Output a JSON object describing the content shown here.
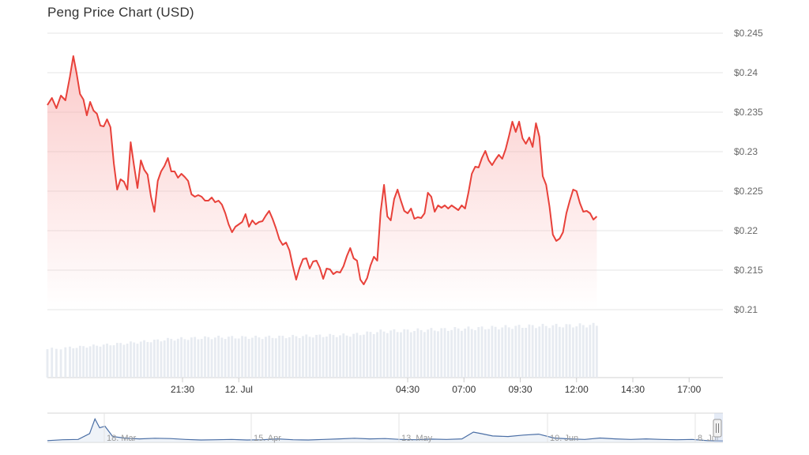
{
  "title": "Peng Price Chart (USD)",
  "chart_data": {
    "type": "area",
    "title": "Peng Price Chart (USD)",
    "y_unit": "USD",
    "ylim": [
      0.21,
      0.245
    ],
    "y_ticks": [
      "$0.245",
      "$0.24",
      "$0.235",
      "$0.23",
      "$0.225",
      "$0.22",
      "$0.215",
      "$0.21"
    ],
    "y_tick_values": [
      0.245,
      0.24,
      0.235,
      0.23,
      0.225,
      0.22,
      0.215,
      0.21
    ],
    "x_ticks": [
      "21:30",
      "12. Jul",
      "04:30",
      "07:00",
      "09:30",
      "12:00",
      "14:30",
      "17:00"
    ],
    "x_tick_hours": [
      2.5,
      5,
      12.5,
      15,
      17.5,
      20,
      22.5,
      25
    ],
    "x_hours_range": [
      -3.5,
      26.5
    ],
    "price": [
      [
        -3.5,
        0.2359
      ],
      [
        -3.3,
        0.2368
      ],
      [
        -3.1,
        0.2355
      ],
      [
        -2.9,
        0.2371
      ],
      [
        -2.7,
        0.2365
      ],
      [
        -2.5,
        0.2395
      ],
      [
        -2.35,
        0.2421
      ],
      [
        -2.2,
        0.2399
      ],
      [
        -2.05,
        0.2373
      ],
      [
        -1.9,
        0.2366
      ],
      [
        -1.75,
        0.2346
      ],
      [
        -1.6,
        0.2363
      ],
      [
        -1.45,
        0.2352
      ],
      [
        -1.3,
        0.2348
      ],
      [
        -1.15,
        0.2333
      ],
      [
        -1.0,
        0.2332
      ],
      [
        -0.85,
        0.2341
      ],
      [
        -0.7,
        0.2331
      ],
      [
        -0.55,
        0.2285
      ],
      [
        -0.4,
        0.2252
      ],
      [
        -0.25,
        0.2265
      ],
      [
        -0.1,
        0.2262
      ],
      [
        0.05,
        0.2252
      ],
      [
        0.2,
        0.2312
      ],
      [
        0.35,
        0.2282
      ],
      [
        0.5,
        0.2254
      ],
      [
        0.65,
        0.2289
      ],
      [
        0.8,
        0.2277
      ],
      [
        0.95,
        0.2271
      ],
      [
        1.1,
        0.2243
      ],
      [
        1.25,
        0.2224
      ],
      [
        1.4,
        0.2263
      ],
      [
        1.55,
        0.2275
      ],
      [
        1.7,
        0.2282
      ],
      [
        1.85,
        0.2292
      ],
      [
        2.0,
        0.2275
      ],
      [
        2.15,
        0.2275
      ],
      [
        2.3,
        0.2267
      ],
      [
        2.45,
        0.2272
      ],
      [
        2.6,
        0.2268
      ],
      [
        2.75,
        0.2263
      ],
      [
        2.9,
        0.2246
      ],
      [
        3.05,
        0.2243
      ],
      [
        3.2,
        0.2245
      ],
      [
        3.35,
        0.2243
      ],
      [
        3.5,
        0.2238
      ],
      [
        3.65,
        0.2238
      ],
      [
        3.8,
        0.2242
      ],
      [
        3.95,
        0.2236
      ],
      [
        4.1,
        0.2238
      ],
      [
        4.25,
        0.2233
      ],
      [
        4.4,
        0.2222
      ],
      [
        4.55,
        0.2208
      ],
      [
        4.7,
        0.2198
      ],
      [
        4.85,
        0.2205
      ],
      [
        5.0,
        0.2208
      ],
      [
        5.15,
        0.2211
      ],
      [
        5.3,
        0.2221
      ],
      [
        5.45,
        0.2205
      ],
      [
        5.6,
        0.2213
      ],
      [
        5.75,
        0.2208
      ],
      [
        5.9,
        0.2211
      ],
      [
        6.05,
        0.2212
      ],
      [
        6.2,
        0.2219
      ],
      [
        6.35,
        0.2225
      ],
      [
        6.5,
        0.2215
      ],
      [
        6.65,
        0.2203
      ],
      [
        6.8,
        0.2189
      ],
      [
        6.95,
        0.2182
      ],
      [
        7.1,
        0.2185
      ],
      [
        7.25,
        0.2175
      ],
      [
        7.4,
        0.2155
      ],
      [
        7.55,
        0.2138
      ],
      [
        7.7,
        0.2153
      ],
      [
        7.85,
        0.2164
      ],
      [
        8.0,
        0.2165
      ],
      [
        8.15,
        0.2152
      ],
      [
        8.3,
        0.2161
      ],
      [
        8.45,
        0.2162
      ],
      [
        8.6,
        0.2153
      ],
      [
        8.75,
        0.2139
      ],
      [
        8.9,
        0.2152
      ],
      [
        9.05,
        0.2151
      ],
      [
        9.2,
        0.2145
      ],
      [
        9.35,
        0.2148
      ],
      [
        9.5,
        0.2147
      ],
      [
        9.65,
        0.2155
      ],
      [
        9.8,
        0.2168
      ],
      [
        9.95,
        0.2178
      ],
      [
        10.1,
        0.2165
      ],
      [
        10.25,
        0.2162
      ],
      [
        10.4,
        0.2138
      ],
      [
        10.55,
        0.2132
      ],
      [
        10.7,
        0.214
      ],
      [
        10.85,
        0.2156
      ],
      [
        11.0,
        0.2167
      ],
      [
        11.15,
        0.2162
      ],
      [
        11.3,
        0.2224
      ],
      [
        11.45,
        0.2258
      ],
      [
        11.6,
        0.2218
      ],
      [
        11.75,
        0.2213
      ],
      [
        11.9,
        0.224
      ],
      [
        12.05,
        0.2252
      ],
      [
        12.2,
        0.2238
      ],
      [
        12.35,
        0.2225
      ],
      [
        12.5,
        0.2222
      ],
      [
        12.65,
        0.2228
      ],
      [
        12.8,
        0.2215
      ],
      [
        12.95,
        0.2217
      ],
      [
        13.1,
        0.2216
      ],
      [
        13.25,
        0.2222
      ],
      [
        13.4,
        0.2248
      ],
      [
        13.55,
        0.2243
      ],
      [
        13.7,
        0.2224
      ],
      [
        13.85,
        0.2232
      ],
      [
        14.0,
        0.2229
      ],
      [
        14.15,
        0.2232
      ],
      [
        14.3,
        0.2228
      ],
      [
        14.45,
        0.2232
      ],
      [
        14.6,
        0.2229
      ],
      [
        14.75,
        0.2226
      ],
      [
        14.9,
        0.2232
      ],
      [
        15.05,
        0.2228
      ],
      [
        15.2,
        0.2248
      ],
      [
        15.35,
        0.2272
      ],
      [
        15.5,
        0.2281
      ],
      [
        15.65,
        0.228
      ],
      [
        15.8,
        0.2292
      ],
      [
        15.95,
        0.2301
      ],
      [
        16.1,
        0.2289
      ],
      [
        16.25,
        0.2283
      ],
      [
        16.4,
        0.229
      ],
      [
        16.55,
        0.2296
      ],
      [
        16.7,
        0.2291
      ],
      [
        16.85,
        0.2303
      ],
      [
        17.0,
        0.232
      ],
      [
        17.15,
        0.2338
      ],
      [
        17.3,
        0.2325
      ],
      [
        17.45,
        0.2338
      ],
      [
        17.6,
        0.2317
      ],
      [
        17.75,
        0.231
      ],
      [
        17.9,
        0.2318
      ],
      [
        18.05,
        0.2306
      ],
      [
        18.2,
        0.2336
      ],
      [
        18.35,
        0.2319
      ],
      [
        18.5,
        0.2269
      ],
      [
        18.65,
        0.2258
      ],
      [
        18.8,
        0.223
      ],
      [
        18.95,
        0.2195
      ],
      [
        19.1,
        0.2187
      ],
      [
        19.25,
        0.219
      ],
      [
        19.4,
        0.2198
      ],
      [
        19.55,
        0.2222
      ],
      [
        19.7,
        0.2238
      ],
      [
        19.85,
        0.2252
      ],
      [
        20.0,
        0.225
      ],
      [
        20.15,
        0.2235
      ],
      [
        20.3,
        0.2224
      ],
      [
        20.45,
        0.2225
      ],
      [
        20.6,
        0.2222
      ],
      [
        20.75,
        0.2214
      ],
      [
        20.9,
        0.2218
      ]
    ],
    "volume_relative": [
      [
        -3.5,
        0.48
      ],
      [
        -2.0,
        0.52
      ],
      [
        0.0,
        0.58
      ],
      [
        2.0,
        0.65
      ],
      [
        4.0,
        0.68
      ],
      [
        6.0,
        0.68
      ],
      [
        8.0,
        0.7
      ],
      [
        10.0,
        0.72
      ],
      [
        11.3,
        0.78
      ],
      [
        13.0,
        0.8
      ],
      [
        16.0,
        0.84
      ],
      [
        18.0,
        0.87
      ],
      [
        20.0,
        0.88
      ],
      [
        20.9,
        0.89
      ]
    ],
    "navigator": {
      "x_ticks": [
        "18. Mar",
        "15. Apr",
        "13. May",
        "10. Jun",
        "8. Jul"
      ],
      "values": [
        [
          0,
          0.06
        ],
        [
          20,
          0.09
        ],
        [
          40,
          0.1
        ],
        [
          55,
          0.3
        ],
        [
          62,
          0.8
        ],
        [
          68,
          0.5
        ],
        [
          75,
          0.55
        ],
        [
          85,
          0.2
        ],
        [
          100,
          0.15
        ],
        [
          120,
          0.12
        ],
        [
          140,
          0.14
        ],
        [
          160,
          0.13
        ],
        [
          180,
          0.1
        ],
        [
          200,
          0.08
        ],
        [
          220,
          0.09
        ],
        [
          240,
          0.1
        ],
        [
          260,
          0.08
        ],
        [
          280,
          0.09
        ],
        [
          300,
          0.12
        ],
        [
          320,
          0.09
        ],
        [
          340,
          0.08
        ],
        [
          360,
          0.1
        ],
        [
          380,
          0.12
        ],
        [
          400,
          0.14
        ],
        [
          420,
          0.12
        ],
        [
          440,
          0.13
        ],
        [
          460,
          0.1
        ],
        [
          480,
          0.09
        ],
        [
          500,
          0.11
        ],
        [
          520,
          0.1
        ],
        [
          540,
          0.12
        ],
        [
          555,
          0.35
        ],
        [
          565,
          0.3
        ],
        [
          580,
          0.22
        ],
        [
          600,
          0.2
        ],
        [
          620,
          0.25
        ],
        [
          640,
          0.28
        ],
        [
          660,
          0.15
        ],
        [
          680,
          0.12
        ],
        [
          700,
          0.1
        ],
        [
          720,
          0.15
        ],
        [
          740,
          0.12
        ],
        [
          760,
          0.1
        ],
        [
          780,
          0.12
        ],
        [
          800,
          0.1
        ],
        [
          820,
          0.09
        ],
        [
          840,
          0.1
        ],
        [
          860,
          0.06
        ],
        [
          880,
          0.05
        ]
      ]
    },
    "colors": {
      "line": "#e8413a",
      "area_top": "#f8a1a0",
      "grid": "#e6e6e6",
      "volume": "#e7ebf1",
      "navigator_line": "#4a6ea5",
      "navigator_fill": "#dfe7f2",
      "navigator_handle": "#c9d3e2"
    }
  }
}
